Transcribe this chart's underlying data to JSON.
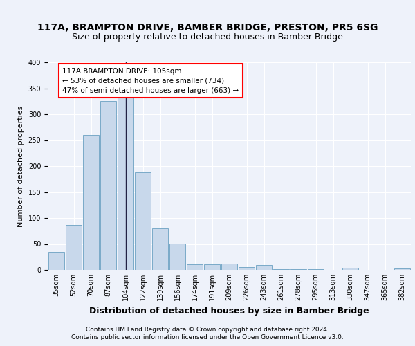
{
  "title": "117A, BRAMPTON DRIVE, BAMBER BRIDGE, PRESTON, PR5 6SG",
  "subtitle": "Size of property relative to detached houses in Bamber Bridge",
  "xlabel": "Distribution of detached houses by size in Bamber Bridge",
  "ylabel": "Number of detached properties",
  "footer_line1": "Contains HM Land Registry data © Crown copyright and database right 2024.",
  "footer_line2": "Contains public sector information licensed under the Open Government Licence v3.0.",
  "categories": [
    "35sqm",
    "52sqm",
    "70sqm",
    "87sqm",
    "104sqm",
    "122sqm",
    "139sqm",
    "156sqm",
    "174sqm",
    "191sqm",
    "209sqm",
    "226sqm",
    "243sqm",
    "261sqm",
    "278sqm",
    "295sqm",
    "313sqm",
    "330sqm",
    "347sqm",
    "365sqm",
    "382sqm"
  ],
  "values": [
    35,
    87,
    260,
    325,
    332,
    188,
    80,
    51,
    11,
    11,
    12,
    6,
    9,
    2,
    1,
    1,
    0,
    4,
    0,
    0,
    3
  ],
  "bar_color": "#c8d8eb",
  "bar_edge_color": "#7aaac8",
  "vline_bar_index": 4,
  "vline_color": "#222244",
  "annotation_text": "117A BRAMPTON DRIVE: 105sqm\n← 53% of detached houses are smaller (734)\n47% of semi-detached houses are larger (663) →",
  "ylim": [
    0,
    400
  ],
  "background_color": "#eef2fa",
  "plot_bg_color": "#eef2fa",
  "grid_color": "#ffffff",
  "title_fontsize": 10,
  "subtitle_fontsize": 9,
  "xlabel_fontsize": 9,
  "ylabel_fontsize": 8,
  "tick_fontsize": 7,
  "annot_fontsize": 7.5,
  "footer_fontsize": 6.5
}
